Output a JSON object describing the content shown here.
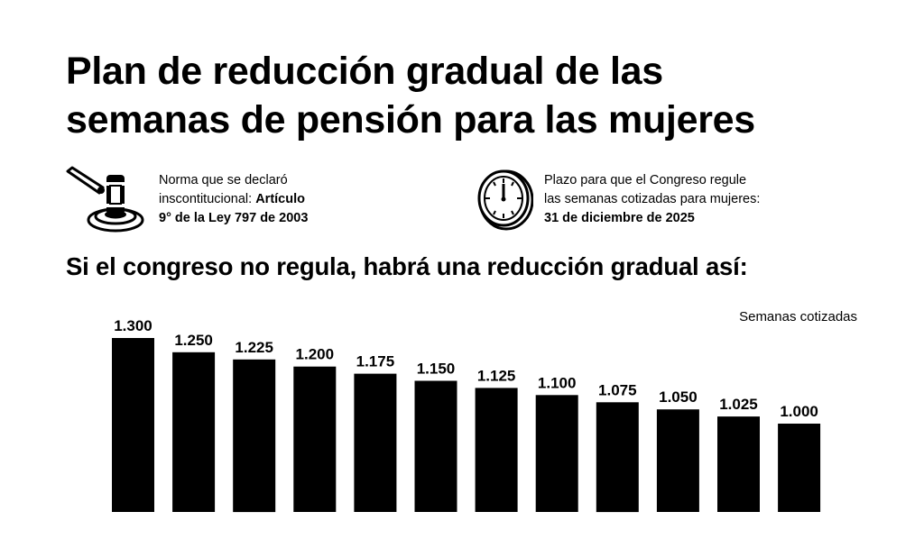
{
  "header": {
    "title_line1": "Plan de reducción gradual de las",
    "title_line2": "semanas de pensión para las mujeres"
  },
  "info_left": {
    "icon": "gavel-icon",
    "line1": "Norma que se declaró",
    "line2_normal": "inscontitucional: ",
    "line2_bold": "Artículo",
    "line3_bold": "9° de la Ley 797 de 2003"
  },
  "info_right": {
    "icon": "clock-icon",
    "line1": "Plazo para que el Congreso regule",
    "line2": "las semanas cotizadas para mujeres:",
    "line3_bold": "31 de diciembre de 2025"
  },
  "subtitle": "Si el congreso no regula, habrá una reducción gradual así:",
  "chart_data": {
    "type": "bar",
    "unit_label": "Semanas cotizadas",
    "values": [
      1300,
      1250,
      1225,
      1200,
      1175,
      1150,
      1125,
      1100,
      1075,
      1050,
      1025,
      1000
    ],
    "value_labels": [
      "1.300",
      "1.250",
      "1.225",
      "1.200",
      "1.175",
      "1.150",
      "1.125",
      "1.100",
      "1.075",
      "1.050",
      "1.025",
      "1.000"
    ],
    "bar_color": "#000000",
    "grid": false,
    "axes_visible": false
  }
}
